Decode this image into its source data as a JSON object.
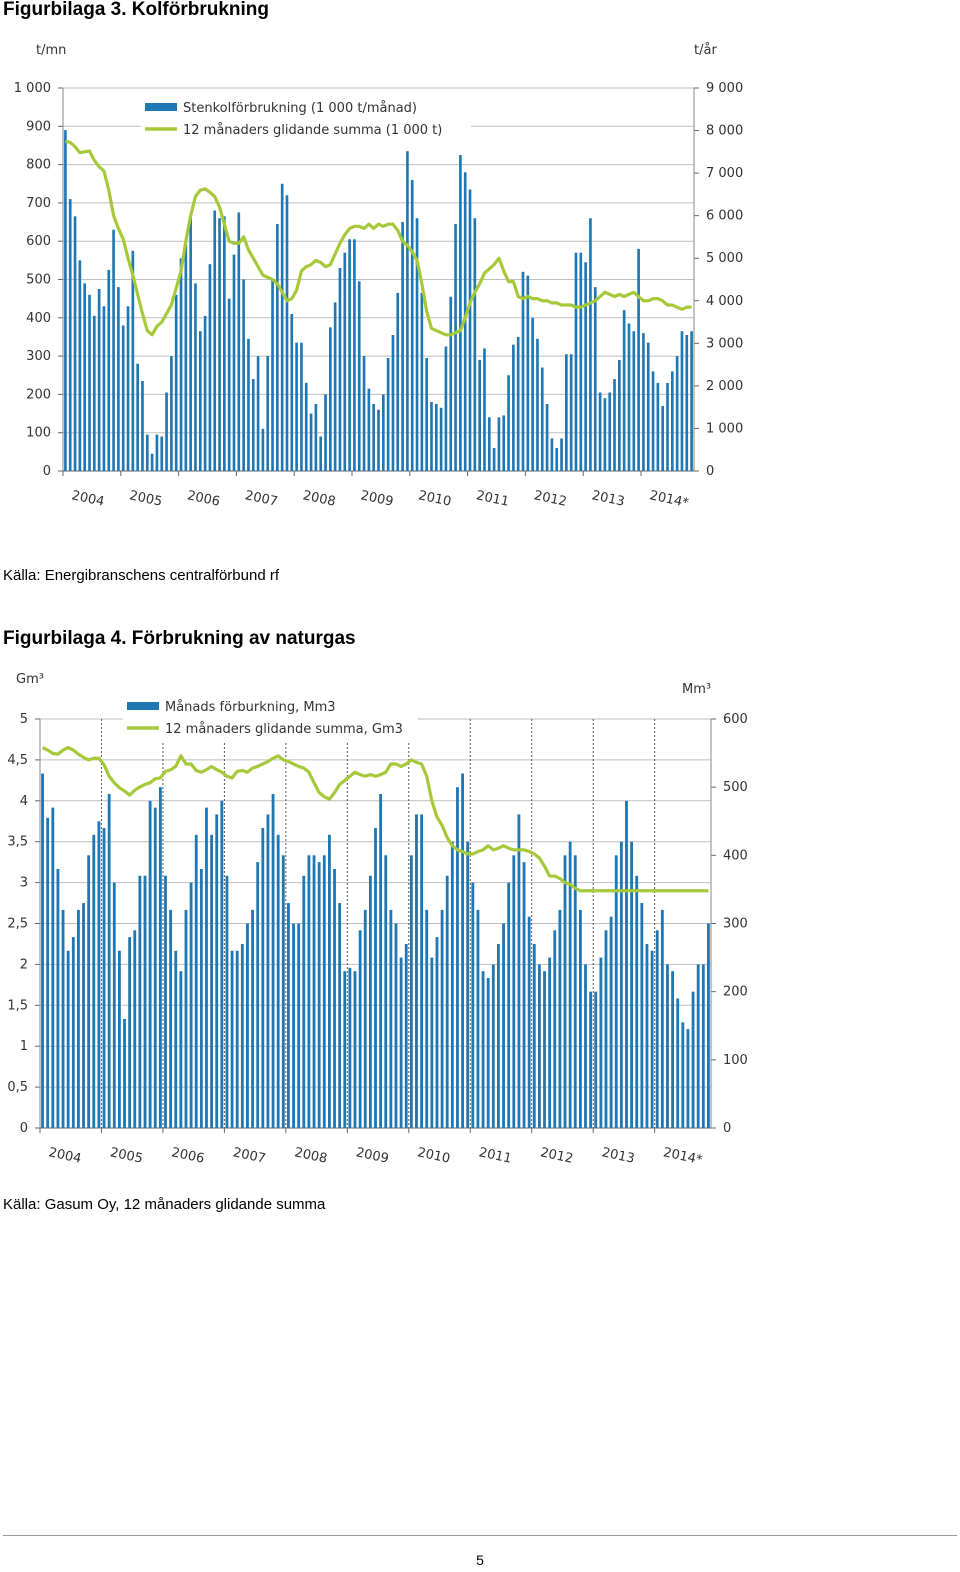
{
  "figures": [
    {
      "title": "Figurbilaga 3. Kolförbrukning",
      "source": "Källa: Energibranschens centralförbund rf"
    },
    {
      "title": "Figurbilaga 4. Förbrukning av naturgas",
      "source": "Källa: Gasum Oy, 12 månaders glidande summa"
    }
  ],
  "page_number": "5",
  "colors": {
    "bars": "#1f77b4",
    "line": "#a6c93a",
    "grid": "#bfbfbf"
  },
  "chart_data": [
    {
      "type": "bar",
      "combined_with": "line",
      "grid": true,
      "legend_position": "top-left",
      "left_axis": {
        "unit": "t/mn",
        "ylim": [
          0,
          1000
        ],
        "ticks": [
          "0",
          "100",
          "200",
          "300",
          "400",
          "500",
          "600",
          "700",
          "800",
          "900",
          "1 000"
        ]
      },
      "right_axis": {
        "unit": "t/år",
        "ylim": [
          0,
          9000
        ],
        "ticks": [
          "0",
          "1 000",
          "2 000",
          "3 000",
          "4 000",
          "5 000",
          "6 000",
          "7 000",
          "8 000",
          "9 000"
        ]
      },
      "x_labels": [
        "2004",
        "2005",
        "2006",
        "2007",
        "2008",
        "2009",
        "2010",
        "2011",
        "2012",
        "2013",
        "2014*"
      ],
      "series": [
        {
          "name": "Stenkolförbrukning (1 000 t/månad)",
          "axis": "left",
          "kind": "bar",
          "values": [
            890,
            710,
            665,
            550,
            490,
            460,
            405,
            475,
            430,
            525,
            630,
            480,
            380,
            430,
            575,
            280,
            235,
            95,
            45,
            95,
            90,
            205,
            300,
            460,
            555,
            590,
            665,
            490,
            365,
            405,
            540,
            680,
            660,
            665,
            450,
            565,
            675,
            500,
            345,
            240,
            300,
            110,
            300,
            500,
            645,
            750,
            720,
            410,
            335,
            335,
            230,
            150,
            175,
            90,
            200,
            375,
            440,
            530,
            570,
            605,
            605,
            495,
            300,
            215,
            175,
            160,
            200,
            295,
            355,
            465,
            650,
            835,
            760,
            660,
            465,
            295,
            180,
            175,
            165,
            325,
            455,
            645,
            825,
            780,
            735,
            660,
            290,
            320,
            140,
            60,
            140,
            145,
            250,
            330,
            350,
            520,
            510,
            400,
            345,
            270,
            175,
            85,
            60,
            85,
            305,
            305,
            570,
            570,
            545,
            660,
            480,
            205,
            190,
            205,
            240,
            290,
            420,
            385,
            365,
            580,
            360,
            335,
            260,
            230,
            170,
            230,
            260,
            300,
            365,
            355,
            365
          ],
          "note": "values estimated from chart"
        },
        {
          "name": "12 månaders glidande summa (1 000 t)",
          "axis": "right",
          "kind": "line",
          "values": [
            7750,
            7720,
            7620,
            7480,
            7500,
            7520,
            7300,
            7150,
            7050,
            6600,
            6000,
            5700,
            5450,
            5000,
            4600,
            4150,
            3700,
            3300,
            3200,
            3400,
            3500,
            3700,
            3900,
            4300,
            4700,
            5400,
            6000,
            6450,
            6600,
            6630,
            6550,
            6450,
            6200,
            5800,
            5400,
            5350,
            5350,
            5500,
            5200,
            5000,
            4800,
            4600,
            4550,
            4500,
            4400,
            4200,
            4000,
            4050,
            4250,
            4700,
            4800,
            4850,
            4950,
            4900,
            4800,
            4850,
            5100,
            5350,
            5550,
            5700,
            5750,
            5750,
            5700,
            5800,
            5700,
            5800,
            5750,
            5800,
            5800,
            5650,
            5400,
            5300,
            5150,
            4950,
            4400,
            3750,
            3350,
            3300,
            3250,
            3200,
            3200,
            3250,
            3300,
            3600,
            3950,
            4200,
            4400,
            4650,
            4750,
            4850,
            5000,
            4700,
            4450,
            4450,
            4100,
            4050,
            4100,
            4050,
            4050,
            4000,
            4000,
            3950,
            3950,
            3900,
            3900,
            3900,
            3850,
            3850,
            3900,
            3950,
            4000,
            4100,
            4200,
            4150,
            4100,
            4150,
            4100,
            4150,
            4200,
            4100,
            4000,
            4000,
            4050,
            4050,
            4000,
            3900,
            3900,
            3850,
            3800,
            3850,
            3850
          ],
          "note": "values estimated from chart"
        }
      ]
    },
    {
      "type": "bar",
      "combined_with": "line",
      "grid": true,
      "legend_position": "top-left",
      "left_axis": {
        "unit": "Gm³",
        "ylim": [
          0,
          5
        ],
        "ticks": [
          "0",
          "0,5",
          "1",
          "1,5",
          "2",
          "2,5",
          "3",
          "3,5",
          "4",
          "4,5",
          "5"
        ]
      },
      "right_axis": {
        "unit": "Mm³",
        "ylim": [
          0,
          600
        ],
        "ticks": [
          "0",
          "100",
          "200",
          "300",
          "400",
          "500",
          "600"
        ]
      },
      "x_labels": [
        "2004",
        "2005",
        "2006",
        "2007",
        "2008",
        "2009",
        "2010",
        "2011",
        "2012",
        "2013",
        "2014*"
      ],
      "series": [
        {
          "name": "Månads förburkning, Mm3",
          "axis": "right",
          "kind": "bar",
          "values": [
            520,
            455,
            470,
            380,
            320,
            260,
            280,
            320,
            330,
            400,
            430,
            450,
            440,
            490,
            360,
            260,
            160,
            280,
            290,
            370,
            370,
            480,
            470,
            500,
            370,
            320,
            260,
            230,
            320,
            360,
            430,
            380,
            470,
            430,
            460,
            480,
            370,
            260,
            260,
            270,
            300,
            320,
            390,
            440,
            460,
            490,
            430,
            400,
            330,
            300,
            300,
            370,
            400,
            400,
            390,
            400,
            430,
            380,
            330,
            230,
            235,
            230,
            290,
            320,
            370,
            440,
            490,
            400,
            320,
            300,
            250,
            270,
            400,
            460,
            460,
            320,
            250,
            280,
            320,
            370,
            420,
            500,
            520,
            420,
            360,
            320,
            230,
            220,
            240,
            270,
            300,
            360,
            400,
            460,
            390,
            310,
            270,
            240,
            230,
            250,
            290,
            320,
            400,
            420,
            400,
            320,
            240,
            200,
            200,
            250,
            290,
            310,
            400,
            420,
            480,
            420,
            370,
            330,
            270,
            260,
            290,
            320,
            240,
            230,
            190,
            155,
            145,
            200,
            240,
            240,
            300
          ],
          "note": "values estimated from chart"
        },
        {
          "name": "12 månaders glidande summa, Gm3",
          "axis": "left",
          "kind": "line",
          "values": [
            4.65,
            4.62,
            4.58,
            4.57,
            4.62,
            4.65,
            4.62,
            4.57,
            4.53,
            4.5,
            4.52,
            4.52,
            4.44,
            4.3,
            4.22,
            4.16,
            4.12,
            4.07,
            4.13,
            4.17,
            4.2,
            4.22,
            4.27,
            4.28,
            4.36,
            4.38,
            4.42,
            4.55,
            4.45,
            4.45,
            4.37,
            4.35,
            4.38,
            4.42,
            4.38,
            4.35,
            4.3,
            4.28,
            4.36,
            4.37,
            4.35,
            4.4,
            4.42,
            4.45,
            4.48,
            4.52,
            4.55,
            4.5,
            4.48,
            4.45,
            4.42,
            4.4,
            4.35,
            4.22,
            4.1,
            4.05,
            4.02,
            4.1,
            4.2,
            4.25,
            4.3,
            4.35,
            4.32,
            4.3,
            4.32,
            4.3,
            4.32,
            4.35,
            4.45,
            4.45,
            4.42,
            4.45,
            4.5,
            4.47,
            4.45,
            4.3,
            4.0,
            3.8,
            3.7,
            3.55,
            3.45,
            3.4,
            3.38,
            3.35,
            3.35,
            3.38,
            3.4,
            3.45,
            3.4,
            3.42,
            3.45,
            3.42,
            3.4,
            3.4,
            3.4,
            3.38,
            3.35,
            3.3,
            3.2,
            3.08,
            3.08,
            3.05,
            3.0,
            2.98,
            2.93,
            2.9,
            2.9,
            2.9,
            2.9,
            2.9,
            2.9,
            2.9,
            2.9,
            2.9,
            2.9,
            2.9,
            2.9,
            2.9,
            2.9,
            2.9,
            2.9,
            2.9,
            2.9,
            2.9,
            2.9,
            2.9,
            2.9,
            2.9,
            2.9,
            2.9,
            2.9
          ],
          "note": "values estimated from chart"
        }
      ]
    }
  ]
}
